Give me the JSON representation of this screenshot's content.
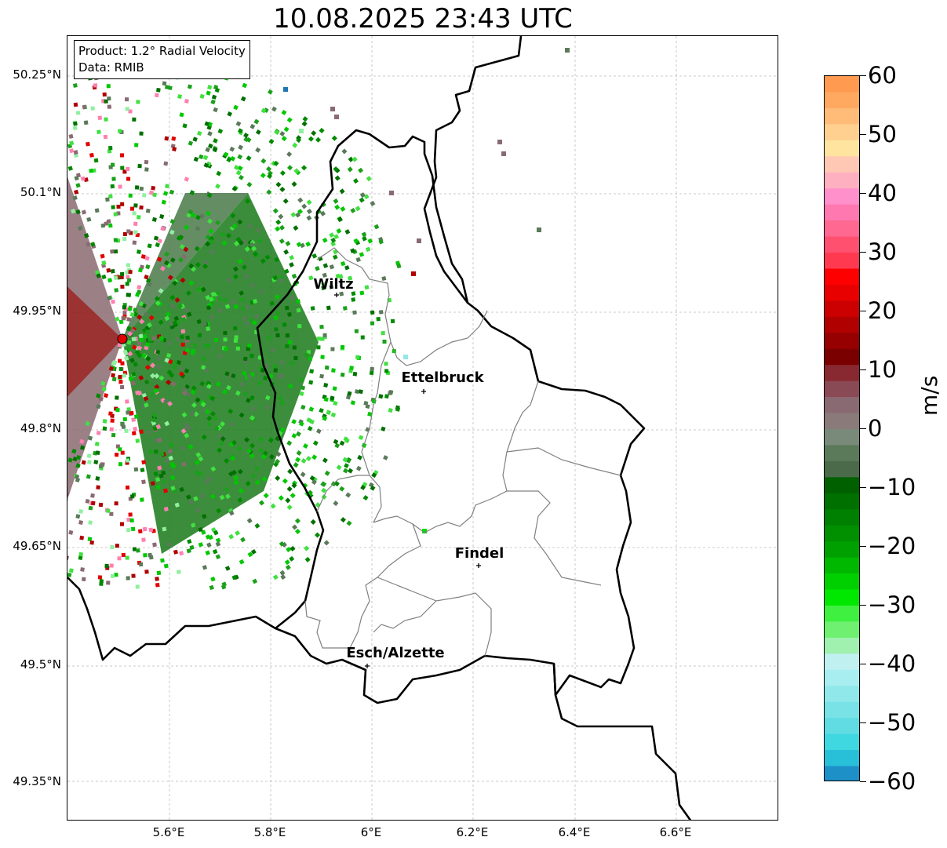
{
  "title": "10.08.2025 23:43 UTC",
  "info": {
    "product": "Product: 1.2° Radial Velocity",
    "data": "Data: RMIB"
  },
  "lat_ticks": [
    "50.25°N",
    "50.1°N",
    "49.95°N",
    "49.8°N",
    "49.65°N",
    "49.5°N",
    "49.35°N"
  ],
  "lon_ticks": [
    "5.6°E",
    "5.8°E",
    "6°E",
    "6.2°E",
    "6.4°E",
    "6.6°E"
  ],
  "cities": [
    "Wiltz",
    "Ettelbruck",
    "Findel",
    "Esch/Alzette"
  ],
  "colorbar": {
    "label": "m/s",
    "ticks": [
      "60",
      "50",
      "40",
      "30",
      "20",
      "10",
      "0",
      "−10",
      "−20",
      "−30",
      "−40",
      "−50",
      "−60"
    ],
    "colors": [
      "#ff9a50",
      "#ffa860",
      "#ffbc78",
      "#ffd090",
      "#ffe4a0",
      "#ffc8b4",
      "#ffb0c0",
      "#ff90cc",
      "#ff78b0",
      "#ff6890",
      "#ff5070",
      "#ff3a50",
      "#ff0000",
      "#e80000",
      "#cc0000",
      "#b00000",
      "#960000",
      "#7a0000",
      "#882830",
      "#8a4a55",
      "#8a6a72",
      "#8a7a7a",
      "#7a8a7a",
      "#5a7a5a",
      "#4a6a4a",
      "#006000",
      "#007000",
      "#008000",
      "#009000",
      "#00a000",
      "#00b800",
      "#00d000",
      "#00e800",
      "#40f040",
      "#70f070",
      "#a0f0b0",
      "#c0f0f0",
      "#a8eef0",
      "#90e8ea",
      "#78e2e6",
      "#60dce2",
      "#40d8e0",
      "#28c0d8",
      "#1e90c8"
    ]
  }
}
